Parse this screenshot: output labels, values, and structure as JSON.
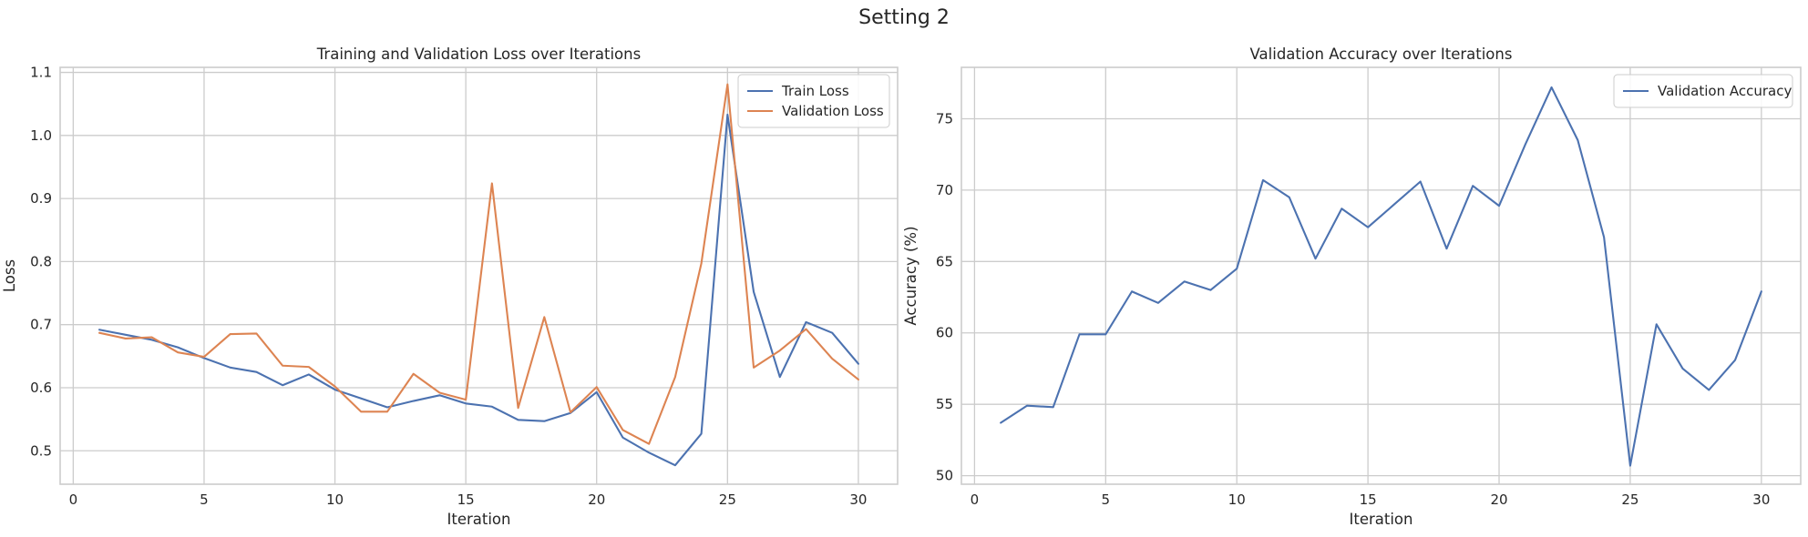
{
  "figure": {
    "suptitle": "Setting 2"
  },
  "chart_data": [
    {
      "type": "line",
      "title": "Training and Validation Loss over Iterations",
      "xlabel": "Iteration",
      "ylabel": "Loss",
      "xlim": [
        -0.5,
        31.5
      ],
      "ylim": [
        0.447,
        1.108
      ],
      "xticks": [
        0,
        5,
        10,
        15,
        20,
        25,
        30
      ],
      "yticks": [
        0.5,
        0.6,
        0.7,
        0.8,
        0.9,
        1.0,
        1.1
      ],
      "ytick_labels": [
        "0.5",
        "0.6",
        "0.7",
        "0.8",
        "0.9",
        "1.0",
        "1.1"
      ],
      "grid": true,
      "legend_position": "upper-right",
      "x": [
        1,
        2,
        3,
        4,
        5,
        6,
        7,
        8,
        9,
        10,
        11,
        12,
        13,
        14,
        15,
        16,
        17,
        18,
        19,
        20,
        21,
        22,
        23,
        24,
        25,
        26,
        27,
        28,
        29,
        30
      ],
      "series": [
        {
          "name": "Train Loss",
          "color": "#4c72b0",
          "values": [
            0.692,
            0.684,
            0.676,
            0.664,
            0.647,
            0.632,
            0.625,
            0.604,
            0.621,
            0.597,
            0.583,
            0.569,
            0.579,
            0.588,
            0.575,
            0.57,
            0.549,
            0.547,
            0.56,
            0.593,
            0.521,
            0.497,
            0.477,
            0.527,
            1.033,
            0.752,
            0.617,
            0.704,
            0.687,
            0.638
          ]
        },
        {
          "name": "Validation Loss",
          "color": "#dd8452",
          "values": [
            0.687,
            0.678,
            0.68,
            0.656,
            0.649,
            0.685,
            0.686,
            0.635,
            0.633,
            0.602,
            0.562,
            0.562,
            0.622,
            0.592,
            0.581,
            0.924,
            0.568,
            0.712,
            0.561,
            0.601,
            0.533,
            0.511,
            0.617,
            0.797,
            1.081,
            0.632,
            0.659,
            0.693,
            0.646,
            0.613
          ]
        }
      ]
    },
    {
      "type": "line",
      "title": "Validation Accuracy over Iterations",
      "xlabel": "Iteration",
      "ylabel": "Accuracy (%)",
      "xlim": [
        -0.5,
        31.5
      ],
      "ylim": [
        49.4,
        78.6
      ],
      "xticks": [
        0,
        5,
        10,
        15,
        20,
        25,
        30
      ],
      "yticks": [
        50,
        55,
        60,
        65,
        70,
        75
      ],
      "ytick_labels": [
        "50",
        "55",
        "60",
        "65",
        "70",
        "75"
      ],
      "grid": true,
      "legend_position": "upper-right",
      "x": [
        1,
        2,
        3,
        4,
        5,
        6,
        7,
        8,
        9,
        10,
        11,
        12,
        13,
        14,
        15,
        16,
        17,
        18,
        19,
        20,
        21,
        22,
        23,
        24,
        25,
        26,
        27,
        28,
        29,
        30
      ],
      "series": [
        {
          "name": "Validation Accuracy",
          "color": "#4c72b0",
          "values": [
            53.7,
            54.9,
            54.8,
            59.9,
            59.9,
            62.9,
            62.1,
            63.6,
            63.0,
            64.5,
            70.7,
            69.5,
            65.2,
            68.7,
            67.4,
            69.0,
            70.6,
            65.9,
            70.3,
            68.9,
            73.2,
            77.2,
            73.5,
            66.7,
            50.7,
            60.6,
            57.5,
            56.0,
            58.1,
            62.9
          ]
        }
      ]
    }
  ]
}
